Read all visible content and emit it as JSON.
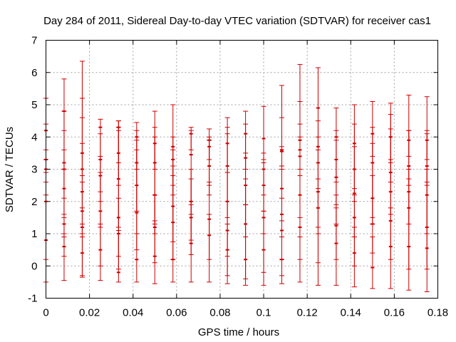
{
  "chart_data": {
    "type": "errorbar",
    "title": "Day 284 of 2011, Sidereal Day-to-day VTEC variation (SDTVAR) for receiver cas1",
    "xlabel": "GPS time / hours",
    "ylabel": "SDTVAR / TECUs",
    "xlim": [
      0,
      0.18
    ],
    "ylim": [
      -1,
      7
    ],
    "xticks": [
      "0",
      "0.02",
      "0.04",
      "0.06",
      "0.08",
      "0.1",
      "0.12",
      "0.14",
      "0.16",
      "0.18"
    ],
    "yticks": [
      "-1",
      "0",
      "1",
      "2",
      "3",
      "4",
      "5",
      "6",
      "7"
    ],
    "grid": true,
    "color": "#cc0000",
    "series": [
      {
        "x": 0.0,
        "points": [
          {
            "y": 2.0,
            "low": -0.5,
            "high": 4.4
          },
          {
            "y": 3.0,
            "low": 2.2,
            "high": 5.2
          },
          {
            "y": 0.8,
            "low": 0.2,
            "high": 2.6
          },
          {
            "y": 3.3,
            "low": 2.9,
            "high": 3.6
          },
          {
            "y": 4.2,
            "low": 3.3,
            "high": 5.2
          }
        ]
      },
      {
        "x": 0.00833,
        "points": [
          {
            "y": 4.8,
            "low": 1.6,
            "high": 5.8
          },
          {
            "y": 3.0,
            "low": 0.9,
            "high": 4.8
          },
          {
            "y": 1.3,
            "low": -0.45,
            "high": 3.0
          },
          {
            "y": 0.6,
            "low": 0.3,
            "high": 1.0
          },
          {
            "y": 2.4,
            "low": 1.5,
            "high": 3.6
          },
          {
            "y": 3.2,
            "low": 2.1,
            "high": 4.2
          }
        ]
      },
      {
        "x": 0.01667,
        "points": [
          {
            "y": 3.0,
            "low": 1.8,
            "high": 6.35
          },
          {
            "y": 1.2,
            "low": -0.35,
            "high": 2.6
          },
          {
            "y": 3.5,
            "low": 2.8,
            "high": 4.6
          },
          {
            "y": 0.4,
            "low": -0.3,
            "high": 1.3
          },
          {
            "y": 2.3,
            "low": 1.0,
            "high": 3.8
          },
          {
            "y": 1.7,
            "low": 0.9,
            "high": 5.2
          }
        ]
      },
      {
        "x": 0.025,
        "points": [
          {
            "y": 4.3,
            "low": 2.0,
            "high": 4.55
          },
          {
            "y": 1.7,
            "low": 0.0,
            "high": 2.9
          },
          {
            "y": 2.8,
            "low": 1.2,
            "high": 3.4
          },
          {
            "y": 0.5,
            "low": -0.45,
            "high": 1.3
          },
          {
            "y": 3.3,
            "low": 2.3,
            "high": 4.1
          }
        ]
      },
      {
        "x": 0.03333,
        "points": [
          {
            "y": 1.5,
            "low": 0.3,
            "high": 4.5
          },
          {
            "y": 2.7,
            "low": 1.2,
            "high": 4.3
          },
          {
            "y": 1.0,
            "low": -0.1,
            "high": 2.1
          },
          {
            "y": 3.5,
            "low": 2.5,
            "high": 4.2
          },
          {
            "y": 4.3,
            "low": 3.2,
            "high": 4.5
          },
          {
            "y": -0.2,
            "low": -0.5,
            "high": 1.1
          }
        ]
      },
      {
        "x": 0.04167,
        "points": [
          {
            "y": 1.65,
            "low": 0.5,
            "high": 3.9
          },
          {
            "y": 3.2,
            "low": 1.7,
            "high": 4.45
          },
          {
            "y": 0.2,
            "low": -0.5,
            "high": 1.0
          },
          {
            "y": 2.5,
            "low": 1.0,
            "high": 3.6
          },
          {
            "y": 4.0,
            "low": 3.0,
            "high": 4.2
          }
        ]
      },
      {
        "x": 0.05,
        "points": [
          {
            "y": 3.2,
            "low": 1.3,
            "high": 4.8
          },
          {
            "y": 1.2,
            "low": 0.1,
            "high": 2.2
          },
          {
            "y": 2.2,
            "low": 1.0,
            "high": 4.3
          },
          {
            "y": 0.3,
            "low": -0.55,
            "high": 1.4
          },
          {
            "y": 3.8,
            "low": 3.0,
            "high": 4.0
          }
        ]
      },
      {
        "x": 0.05833,
        "points": [
          {
            "y": 0.2,
            "low": -0.5,
            "high": 3.1
          },
          {
            "y": 1.85,
            "low": 0.75,
            "high": 3.6
          },
          {
            "y": 3.3,
            "low": 2.5,
            "high": 5.0
          },
          {
            "y": 1.35,
            "low": 0.2,
            "high": 2.8
          },
          {
            "y": 3.7,
            "low": 2.2,
            "high": 4.0
          }
        ]
      },
      {
        "x": 0.06667,
        "points": [
          {
            "y": 3.45,
            "low": 1.6,
            "high": 4.3
          },
          {
            "y": 1.5,
            "low": 0.35,
            "high": 2.7
          },
          {
            "y": 0.7,
            "low": -0.5,
            "high": 1.9
          },
          {
            "y": 4.1,
            "low": 3.6,
            "high": 4.2
          },
          {
            "y": 2.0,
            "low": 0.8,
            "high": 3.0
          }
        ]
      },
      {
        "x": 0.075,
        "points": [
          {
            "y": 3.9,
            "low": 2.5,
            "high": 4.25
          },
          {
            "y": 1.45,
            "low": 0.2,
            "high": 2.6
          },
          {
            "y": 0.95,
            "low": -0.5,
            "high": 1.6
          },
          {
            "y": 3.1,
            "low": 2.2,
            "high": 3.9
          },
          {
            "y": 3.7,
            "low": 3.3,
            "high": 4.0
          }
        ]
      },
      {
        "x": 0.08333,
        "points": [
          {
            "y": 2.0,
            "low": 0.3,
            "high": 4.6
          },
          {
            "y": 3.1,
            "low": 1.5,
            "high": 4.3
          },
          {
            "y": 1.1,
            "low": -0.55,
            "high": 2.9
          },
          {
            "y": 3.8,
            "low": 2.9,
            "high": 4.1
          },
          {
            "y": 0.5,
            "low": -0.3,
            "high": 1.3
          }
        ]
      },
      {
        "x": 0.09167,
        "points": [
          {
            "y": 3.35,
            "low": 1.9,
            "high": 4.8
          },
          {
            "y": 1.3,
            "low": -0.6,
            "high": 2.7
          },
          {
            "y": 2.5,
            "low": 0.9,
            "high": 3.5
          },
          {
            "y": 0.2,
            "low": -0.4,
            "high": 1.9
          },
          {
            "y": 4.1,
            "low": 3.0,
            "high": 4.4
          }
        ]
      },
      {
        "x": 0.1,
        "points": [
          {
            "y": 3.95,
            "low": 1.7,
            "high": 4.95
          },
          {
            "y": 1.5,
            "low": -0.2,
            "high": 3.2
          },
          {
            "y": 0.5,
            "low": -0.6,
            "high": 1.7
          },
          {
            "y": 3.0,
            "low": 2.2,
            "high": 3.3
          },
          {
            "y": 2.5,
            "low": 1.0,
            "high": 3.5
          }
        ]
      },
      {
        "x": 0.10833,
        "points": [
          {
            "y": 1.6,
            "low": 0.2,
            "high": 4.6
          },
          {
            "y": 3.6,
            "low": 3.0,
            "high": 5.6
          },
          {
            "y": 1.1,
            "low": -0.55,
            "high": 2.1
          },
          {
            "y": 2.4,
            "low": 1.4,
            "high": 3.1
          },
          {
            "y": 3.55,
            "low": 3.1,
            "high": 3.7
          },
          {
            "y": 0.2,
            "low": -0.3,
            "high": 0.9
          }
        ]
      },
      {
        "x": 0.11667,
        "points": [
          {
            "y": 3.9,
            "low": 1.5,
            "high": 6.25
          },
          {
            "y": 3.4,
            "low": 0.2,
            "high": 5.1
          },
          {
            "y": 1.2,
            "low": -0.5,
            "high": 2.8
          },
          {
            "y": 2.2,
            "low": 0.9,
            "high": 4.4
          },
          {
            "y": 3.6,
            "low": 3.0,
            "high": 4.0
          }
        ]
      },
      {
        "x": 0.125,
        "points": [
          {
            "y": 4.9,
            "low": 1.2,
            "high": 6.15
          },
          {
            "y": 3.2,
            "low": 1.0,
            "high": 4.0
          },
          {
            "y": 1.8,
            "low": 0.1,
            "high": 2.7
          },
          {
            "y": 3.7,
            "low": 2.4,
            "high": 4.5
          },
          {
            "y": 2.3,
            "low": -0.6,
            "high": 3.6
          }
        ]
      },
      {
        "x": 0.13333,
        "points": [
          {
            "y": 3.3,
            "low": 1.3,
            "high": 4.9
          },
          {
            "y": 2.75,
            "low": 1.9,
            "high": 3.9
          },
          {
            "y": 1.25,
            "low": -0.6,
            "high": 2.2
          },
          {
            "y": 4.0,
            "low": 2.6,
            "high": 4.2
          },
          {
            "y": 0.7,
            "low": 0.2,
            "high": 1.8
          }
        ]
      },
      {
        "x": 0.14167,
        "points": [
          {
            "y": 2.25,
            "low": 0.9,
            "high": 5.0
          },
          {
            "y": 3.8,
            "low": 2.2,
            "high": 4.4
          },
          {
            "y": 1.5,
            "low": 0.0,
            "high": 2.4
          },
          {
            "y": 0.4,
            "low": -0.65,
            "high": 1.2
          },
          {
            "y": 3.0,
            "low": 2.0,
            "high": 3.7
          }
        ]
      },
      {
        "x": 0.15,
        "points": [
          {
            "y": 3.2,
            "low": 1.5,
            "high": 5.1
          },
          {
            "y": 4.1,
            "low": 3.4,
            "high": 4.3
          },
          {
            "y": 1.3,
            "low": 0.4,
            "high": 2.8
          },
          {
            "y": -0.05,
            "low": -0.7,
            "high": 0.9
          },
          {
            "y": 2.1,
            "low": 1.3,
            "high": 3.8
          }
        ]
      },
      {
        "x": 0.15833,
        "points": [
          {
            "y": 2.3,
            "low": 1.6,
            "high": 5.05
          },
          {
            "y": 4.0,
            "low": 3.2,
            "high": 4.25
          },
          {
            "y": 0.6,
            "low": -0.7,
            "high": 1.8
          },
          {
            "y": 2.9,
            "low": 2.6,
            "high": 4.7
          },
          {
            "y": 1.4,
            "low": 0.2,
            "high": 3.3
          }
        ]
      },
      {
        "x": 0.16667,
        "points": [
          {
            "y": 0.6,
            "low": -0.1,
            "high": 3.0
          },
          {
            "y": 2.3,
            "low": 1.3,
            "high": 4.2
          },
          {
            "y": 3.1,
            "low": 2.5,
            "high": 5.3
          },
          {
            "y": 3.9,
            "low": 3.4,
            "high": 4.2
          },
          {
            "y": 1.8,
            "low": -0.75,
            "high": 2.7
          }
        ]
      },
      {
        "x": 0.175,
        "points": [
          {
            "y": 0.55,
            "low": -0.1,
            "high": 3.0
          },
          {
            "y": 2.2,
            "low": 1.0,
            "high": 4.2
          },
          {
            "y": 3.1,
            "low": 2.5,
            "high": 5.25
          },
          {
            "y": 3.9,
            "low": 3.3,
            "high": 4.1
          },
          {
            "y": 1.2,
            "low": -0.8,
            "high": 2.6
          }
        ]
      }
    ]
  }
}
